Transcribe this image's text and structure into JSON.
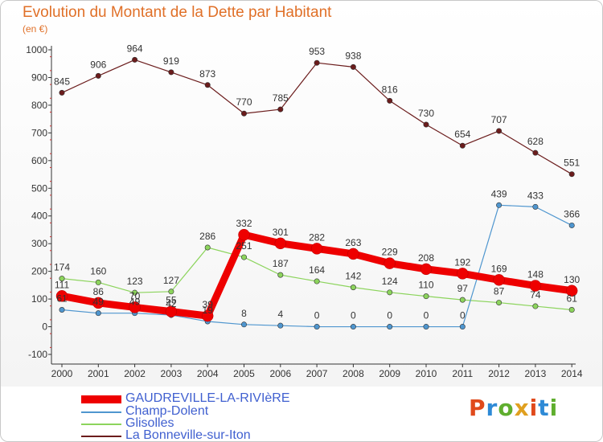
{
  "chart_data": {
    "type": "line",
    "title": "Evolution du Montant de la Dette par Habitant",
    "subtitle": "(en €)",
    "categories": [
      "2000",
      "2001",
      "2002",
      "2003",
      "2004",
      "2005",
      "2006",
      "2007",
      "2008",
      "2009",
      "2010",
      "2011",
      "2012",
      "2013",
      "2014"
    ],
    "ylim": [
      -100,
      1000
    ],
    "yticks": [
      -100,
      0,
      100,
      200,
      300,
      400,
      500,
      600,
      700,
      800,
      900,
      1000
    ],
    "grid": false,
    "legend_position": "bottom-left",
    "series": [
      {
        "name": "La Bonneville-sur-Iton",
        "color": "#6b1c1c",
        "values": [
          845,
          906,
          964,
          919,
          873,
          770,
          785,
          953,
          938,
          816,
          730,
          654,
          707,
          628,
          551
        ]
      },
      {
        "name": "Glisolles",
        "color": "#8cd45c",
        "values": [
          174,
          160,
          123,
          127,
          286,
          251,
          187,
          164,
          142,
          124,
          110,
          97,
          87,
          74,
          61
        ]
      },
      {
        "name": "Champ-Dolent",
        "color": "#4f96cf",
        "values": [
          61,
          49,
          49,
          42,
          19,
          8,
          4,
          0,
          0,
          0,
          0,
          0,
          439,
          433,
          366
        ]
      },
      {
        "name": "GAUDREVILLE-LA-RIVIèRE",
        "color": "#ee0000",
        "values": [
          111,
          86,
          70,
          55,
          39,
          332,
          301,
          282,
          263,
          229,
          208,
          192,
          169,
          148,
          130
        ]
      }
    ],
    "legend_order": [
      "GAUDREVILLE-LA-RIVIèRE",
      "Champ-Dolent",
      "Glisolles",
      "La Bonneville-sur-Iton"
    ]
  },
  "legend": [
    {
      "label": "GAUDREVILLE-LA-RIVIèRE",
      "color": "#ee0000"
    },
    {
      "label": "Champ-Dolent",
      "color": "#4f96cf"
    },
    {
      "label": "Glisolles",
      "color": "#8cd45c"
    },
    {
      "label": "La Bonneville-sur-Iton",
      "color": "#6b1c1c"
    }
  ],
  "logo": {
    "text": "Proxiti",
    "colors": [
      "#e04a1c",
      "#2e8ad6",
      "#5fae2e",
      "#e0a020"
    ]
  }
}
